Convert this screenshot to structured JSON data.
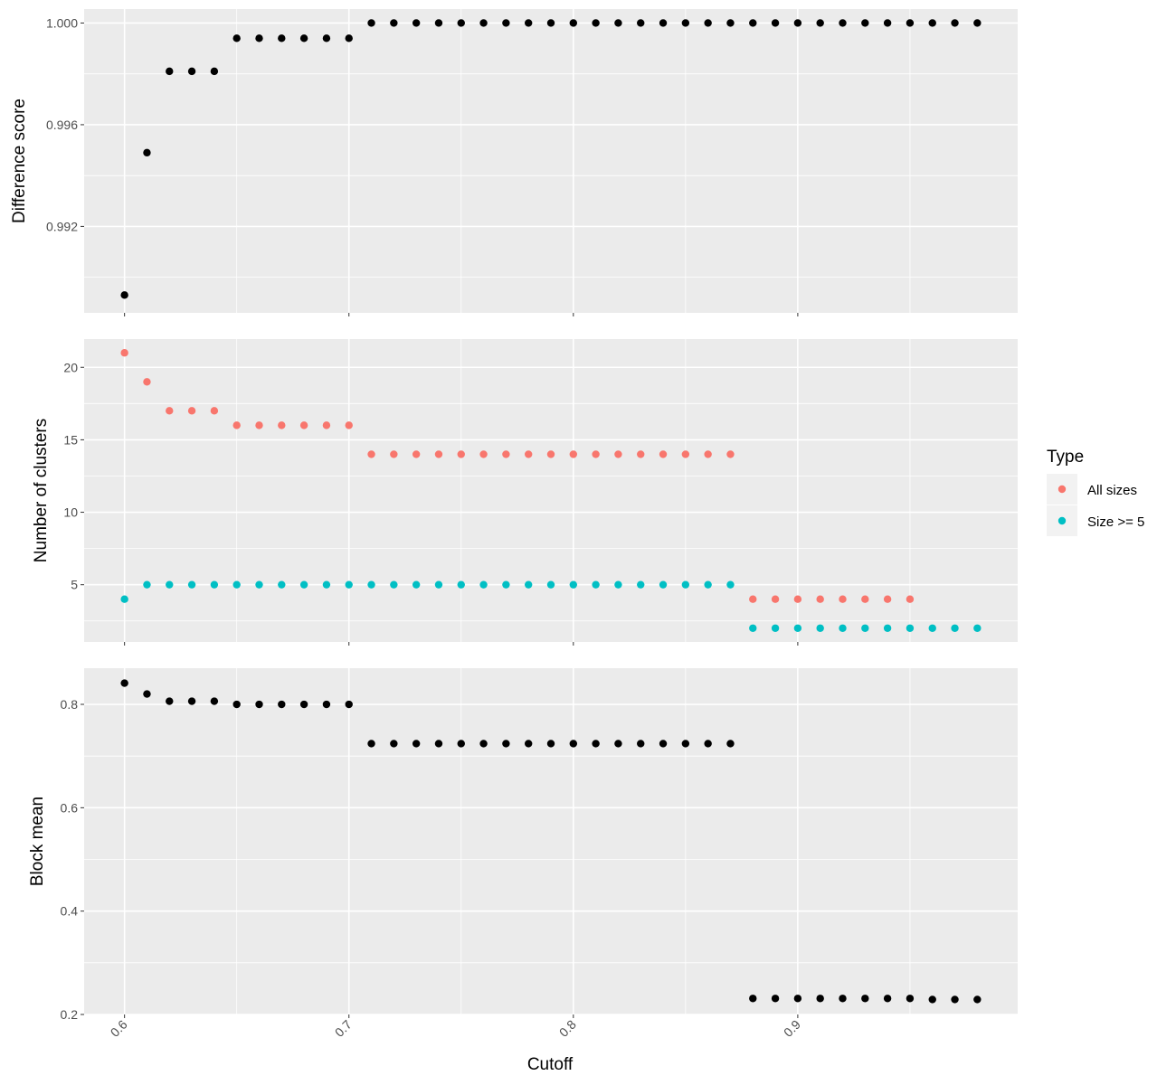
{
  "chart_data": {
    "type": "scatter",
    "layout": "three vertically stacked panels sharing the x axis",
    "x_axis": {
      "label": "Cutoff",
      "range": [
        0.582,
        0.998
      ],
      "ticks": [
        0.6,
        0.7,
        0.8,
        0.9
      ],
      "tick_labels": [
        "0.6",
        "0.7",
        "0.8",
        "0.9"
      ],
      "minor_gridlines": [
        0.65,
        0.75,
        0.85,
        0.95
      ],
      "tick_label_rotation": -45
    },
    "x": [
      0.6,
      0.61,
      0.62,
      0.63,
      0.64,
      0.65,
      0.66,
      0.67,
      0.68,
      0.69,
      0.7,
      0.71,
      0.72,
      0.73,
      0.74,
      0.75,
      0.76,
      0.77,
      0.78,
      0.79,
      0.8,
      0.81,
      0.82,
      0.83,
      0.84,
      0.85,
      0.86,
      0.87,
      0.88,
      0.89,
      0.9,
      0.91,
      0.92,
      0.93,
      0.94,
      0.95,
      0.96,
      0.97,
      0.98
    ],
    "panels": [
      {
        "ylabel": "Difference score",
        "ylim": [
          0.9886,
          1.00055
        ],
        "yticks": [
          0.992,
          0.996,
          1.0
        ],
        "ytick_labels": [
          "0.992",
          "0.996",
          "1.000"
        ],
        "y_minor": [
          0.99,
          0.994,
          0.998
        ],
        "series": [
          {
            "name": "",
            "color": "#000000",
            "values": [
              0.9893,
              0.9949,
              0.9981,
              0.9981,
              0.9981,
              0.9994,
              0.9994,
              0.9994,
              0.9994,
              0.9994,
              0.9994,
              1.0,
              1.0,
              1.0,
              1.0,
              1.0,
              1.0,
              1.0,
              1.0,
              1.0,
              1.0,
              1.0,
              1.0,
              1.0,
              1.0,
              1.0,
              1.0,
              1.0,
              1.0,
              1.0,
              1.0,
              1.0,
              1.0,
              1.0,
              1.0,
              1.0,
              1.0,
              1.0,
              1.0
            ]
          }
        ]
      },
      {
        "ylabel": "Number of clusters",
        "ylim": [
          1.05,
          21.95
        ],
        "yticks": [
          5,
          10,
          15,
          20
        ],
        "ytick_labels": [
          "5",
          "10",
          "15",
          "20"
        ],
        "y_minor": [
          2.5,
          7.5,
          12.5,
          17.5
        ],
        "series": [
          {
            "name": "All sizes",
            "color": "#F8766D",
            "values": [
              21,
              19,
              17,
              17,
              17,
              16,
              16,
              16,
              16,
              16,
              16,
              14,
              14,
              14,
              14,
              14,
              14,
              14,
              14,
              14,
              14,
              14,
              14,
              14,
              14,
              14,
              14,
              14,
              4,
              4,
              4,
              4,
              4,
              4,
              4,
              4,
              null,
              null,
              null
            ]
          },
          {
            "name": "Size >= 5",
            "color": "#00BFC4",
            "values": [
              4,
              5,
              5,
              5,
              5,
              5,
              5,
              5,
              5,
              5,
              5,
              5,
              5,
              5,
              5,
              5,
              5,
              5,
              5,
              5,
              5,
              5,
              5,
              5,
              5,
              5,
              5,
              5,
              2,
              2,
              2,
              2,
              2,
              2,
              2,
              2,
              2,
              2,
              2
            ]
          }
        ]
      },
      {
        "ylabel": "Block mean",
        "ylim": [
          0.2,
          0.87
        ],
        "yticks": [
          0.2,
          0.4,
          0.6,
          0.8
        ],
        "ytick_labels": [
          "0.2",
          "0.4",
          "0.6",
          "0.8"
        ],
        "y_minor": [
          0.3,
          0.5,
          0.7
        ],
        "series": [
          {
            "name": "",
            "color": "#000000",
            "values": [
              0.841,
              0.82,
              0.806,
              0.806,
              0.806,
              0.8,
              0.8,
              0.8,
              0.8,
              0.8,
              0.8,
              0.724,
              0.724,
              0.724,
              0.724,
              0.724,
              0.724,
              0.724,
              0.724,
              0.724,
              0.724,
              0.724,
              0.724,
              0.724,
              0.724,
              0.724,
              0.724,
              0.724,
              0.231,
              0.231,
              0.231,
              0.231,
              0.231,
              0.231,
              0.231,
              0.231,
              0.229,
              0.229,
              0.229
            ]
          }
        ]
      }
    ],
    "legend": {
      "title": "Type",
      "placement": "right",
      "entries": [
        {
          "label": "All sizes",
          "color": "#F8766D"
        },
        {
          "label": "Size >= 5",
          "color": "#00BFC4"
        }
      ]
    },
    "grid": true,
    "panel_background": "#EBEBEB"
  }
}
